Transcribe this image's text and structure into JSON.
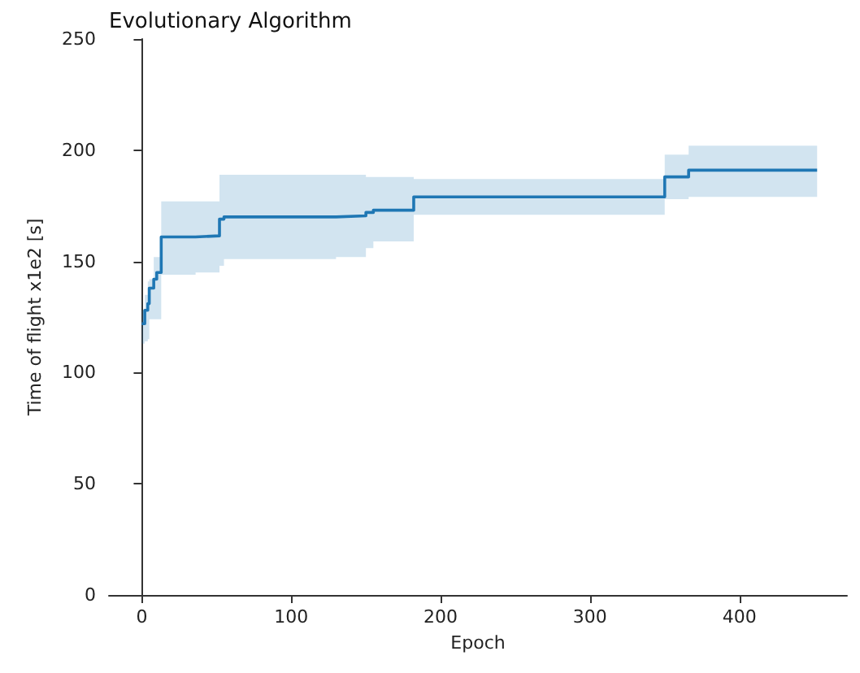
{
  "chart_data": {
    "type": "step",
    "title": "Evolutionary Algorithm",
    "xlabel": "Epoch",
    "ylabel": "Time of flight x1e2 [s]",
    "xlim": [
      -22,
      472
    ],
    "xticks": [
      0,
      100,
      200,
      300,
      400
    ],
    "ylim": [
      0,
      250
    ],
    "yticks": [
      0,
      50,
      100,
      150,
      200,
      250
    ],
    "series": [
      {
        "color": "#1f77b4",
        "x": [
          0,
          2,
          4,
          5,
          8,
          10,
          13,
          36,
          52,
          55,
          130,
          150,
          155,
          182,
          350,
          366,
          452
        ],
        "values": [
          122,
          128,
          131,
          138,
          142,
          145,
          161,
          161.5,
          169,
          170,
          170.5,
          172,
          173,
          179,
          188,
          191,
          191
        ],
        "lower": [
          113,
          114,
          115,
          124,
          124,
          124,
          144,
          145,
          148,
          151,
          152,
          156,
          159,
          171,
          178,
          179,
          179
        ],
        "upper": [
          128,
          135,
          141,
          142,
          152,
          152,
          177,
          177,
          189,
          189,
          189,
          188,
          188,
          187,
          198,
          202,
          202
        ]
      }
    ]
  }
}
